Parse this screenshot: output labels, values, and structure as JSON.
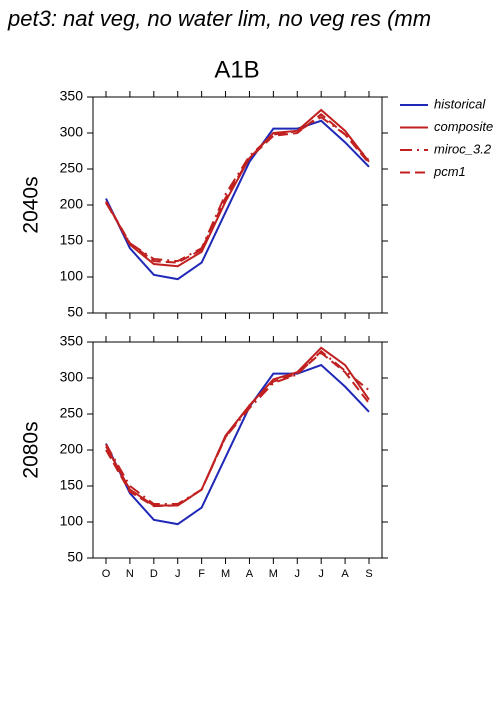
{
  "title": "pet3: nat veg, no water lim, no veg res (mm",
  "subtitle": "A1B",
  "chart_data": [
    {
      "type": "line",
      "panel_label": "2040s",
      "ylim": [
        50,
        350
      ],
      "yticks": [
        50,
        100,
        150,
        200,
        250,
        300,
        350
      ],
      "series": [
        {
          "name": "historical",
          "color": "#2028b8",
          "dash": "solid",
          "values": [
            209,
            140,
            103,
            97,
            120,
            190,
            260,
            306,
            306,
            317,
            287,
            253
          ]
        },
        {
          "name": "composite",
          "color": "#c02020",
          "dash": "solid",
          "values": [
            205,
            145,
            118,
            115,
            135,
            205,
            265,
            300,
            303,
            332,
            303,
            260
          ]
        },
        {
          "name": "miroc_3.2",
          "color": "#c02020",
          "dash": "dashdot",
          "values": [
            203,
            147,
            125,
            122,
            140,
            215,
            268,
            298,
            302,
            322,
            298,
            262
          ]
        },
        {
          "name": "pcm1",
          "color": "#c02020",
          "dash": "dash",
          "values": [
            205,
            147,
            122,
            120,
            138,
            210,
            265,
            296,
            300,
            326,
            298,
            258
          ]
        }
      ]
    },
    {
      "type": "line",
      "panel_label": "2080s",
      "categories": [
        "O",
        "N",
        "D",
        "J",
        "F",
        "M",
        "A",
        "M",
        "J",
        "J",
        "A",
        "S"
      ],
      "ylim": [
        50,
        350
      ],
      "yticks": [
        50,
        100,
        150,
        200,
        250,
        300,
        350
      ],
      "series": [
        {
          "color": "#2028b8",
          "dash": "solid",
          "values": [
            209,
            140,
            103,
            97,
            120,
            190,
            260,
            306,
            306,
            318,
            288,
            253
          ]
        },
        {
          "color": "#c02020",
          "dash": "solid",
          "values": [
            205,
            145,
            123,
            123,
            145,
            220,
            262,
            298,
            308,
            342,
            318,
            270
          ]
        },
        {
          "color": "#c02020",
          "dash": "dashdot",
          "values": [
            208,
            150,
            125,
            125,
            145,
            218,
            258,
            293,
            305,
            337,
            310,
            283
          ]
        },
        {
          "color": "#c02020",
          "dash": "dash",
          "values": [
            200,
            142,
            122,
            123,
            145,
            218,
            262,
            295,
            306,
            335,
            308,
            265
          ]
        }
      ]
    }
  ]
}
